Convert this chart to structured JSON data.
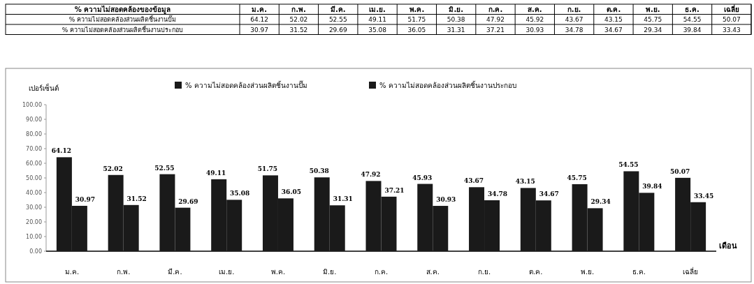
{
  "chart_data": [
    {
      "type": "other",
      "title": "% ความไม่สอดคล้องของข้อมูล",
      "categories": [
        "ม.ค.",
        "ก.พ.",
        "มี.ค.",
        "เม.ย.",
        "พ.ค.",
        "มิ.ย.",
        "ก.ค.",
        "ส.ค.",
        "ก.ย.",
        "ต.ค.",
        "พ.ย.",
        "ธ.ค.",
        "เฉลี่ย"
      ],
      "y_categories": [
        "% ความไม่สอดคล้องส่วนผลิตชิ้นงานปั๊ม",
        "% ความไม่สอดคล้องส่วนผลิตชิ้นงานประกอบ"
      ],
      "cell_labels": [
        [
          "64.12",
          "52.02",
          "52.55",
          "49.11",
          "51.75",
          "50.38",
          "47.92",
          "45.92",
          "43.67",
          "43.15",
          "45.75",
          "54.55",
          "50.07"
        ],
        [
          "30.97",
          "31.52",
          "29.69",
          "35.08",
          "36.05",
          "31.31",
          "37.21",
          "30.93",
          "34.78",
          "34.67",
          "29.34",
          "39.84",
          "33.43"
        ]
      ]
    },
    {
      "type": "bar",
      "ylabel": "เปอร์เซ็นต์",
      "xlabel": "เดือน",
      "categories": [
        "ม.ค.",
        "ก.พ.",
        "มี.ค.",
        "เม.ย.",
        "พ.ค.",
        "มิ.ย.",
        "ก.ค.",
        "ส.ค.",
        "ก.ย.",
        "ต.ค.",
        "พ.ย.",
        "ธ.ค.",
        "เฉลี่ย"
      ],
      "series": [
        {
          "name": "% ความไม่สอดคล้องส่วนผลิตชิ้นงานปั๊ม",
          "color": "#1a1a1a",
          "values": [
            64.12,
            52.02,
            52.55,
            49.11,
            51.75,
            50.38,
            47.92,
            45.93,
            43.67,
            43.15,
            45.75,
            54.55,
            50.07
          ]
        },
        {
          "name": "% ความไม่สอดคล้องส่วนผลิตชิ้นงานประกอบ",
          "color": "#1a1a1a",
          "values": [
            30.97,
            31.52,
            29.69,
            35.08,
            36.05,
            31.31,
            37.21,
            30.93,
            34.78,
            34.67,
            29.34,
            39.84,
            33.45
          ]
        }
      ],
      "ylim": [
        0,
        100
      ],
      "yticks": [
        {
          "value": 0,
          "label": "0.00"
        },
        {
          "value": 10,
          "label": "10.00"
        },
        {
          "value": 20,
          "label": "20.00"
        },
        {
          "value": 30,
          "label": "30.00"
        },
        {
          "value": 40,
          "label": "40.00"
        },
        {
          "value": 50,
          "label": "50.00"
        },
        {
          "value": 60,
          "label": "60.00"
        },
        {
          "value": 70,
          "label": "70.00"
        },
        {
          "value": 80,
          "label": "80.00"
        },
        {
          "value": 90,
          "label": "90.00"
        },
        {
          "value": 100,
          "label": "100.00"
        }
      ],
      "legend": "top",
      "data_labels": true,
      "grid": false
    }
  ]
}
